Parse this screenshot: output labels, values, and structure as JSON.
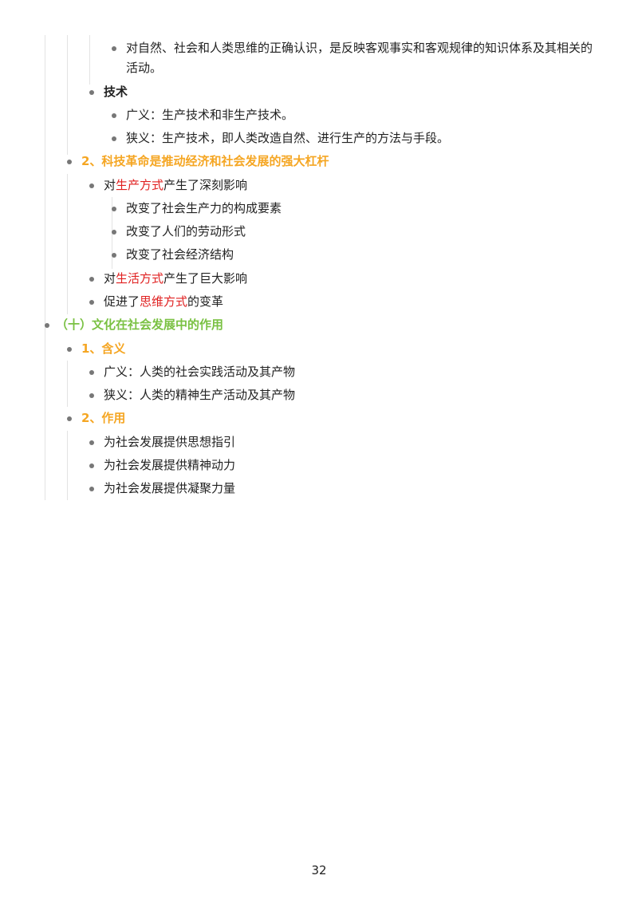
{
  "outline": {
    "l1": "对自然、社会和人类思维的正确认识，是反映客观事实和客观规律的知识体系及其相关的活动。",
    "l2": "技术",
    "l3": "广义：生产技术和非生产技术。",
    "l4": "狭义：生产技术，即人类改造自然、进行生产的方法与手段。",
    "l5": "2、科技革命是推动经济和社会发展的强大杠杆",
    "l6": {
      "a": "对",
      "b": "生产方式",
      "c": "产生了深刻影响"
    },
    "l7": "改变了社会生产力的构成要素",
    "l8": "改变了人们的劳动形式",
    "l9": "改变了社会经济结构",
    "l10": {
      "a": "对",
      "b": "生活方式",
      "c": "产生了巨大影响"
    },
    "l11": {
      "a": "促进了",
      "b": "思维方式",
      "c": "的变革"
    },
    "l12": "（十）文化在社会发展中的作用",
    "l13": "1、含义",
    "l14": "广义：人类的社会实践活动及其产物",
    "l15": "狭义：人类的精神生产活动及其产物",
    "l16": "2、作用",
    "l17": "为社会发展提供思想指引",
    "l18": "为社会发展提供精神动力",
    "l19": "为社会发展提供凝聚力量"
  },
  "page_number": "32",
  "colors": {
    "heading_orange": "#f5a623",
    "heading_green": "#7ac143",
    "emphasis_red": "#e02020"
  }
}
